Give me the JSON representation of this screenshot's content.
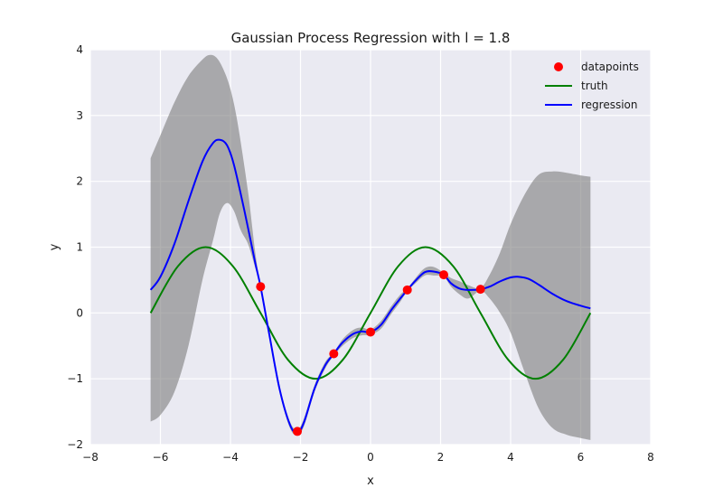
{
  "chart_data": {
    "type": "line",
    "title": "Gaussian Process Regression with l = 1.8",
    "xlabel": "x",
    "ylabel": "y",
    "xlim": [
      -8,
      8
    ],
    "ylim": [
      -2,
      4
    ],
    "xticks": [
      -8,
      -6,
      -4,
      -2,
      0,
      2,
      4,
      6,
      8
    ],
    "yticks": [
      -2,
      -1,
      0,
      1,
      2,
      3,
      4
    ],
    "xtick_labels": [
      "−8",
      "−6",
      "−4",
      "−2",
      "0",
      "2",
      "4",
      "6",
      "8"
    ],
    "ytick_labels": [
      "−2",
      "−1",
      "0",
      "1",
      "2",
      "3",
      "4"
    ],
    "grid": true,
    "legend_position": "top-right",
    "colors": {
      "plot_background": "#EAEAF2",
      "grid": "#FFFFFF",
      "truth": "#008000",
      "regression": "#0000FF",
      "datapoints": "#FF0000",
      "band": "#7F7F7F"
    },
    "legend": [
      {
        "name": "datapoints",
        "kind": "marker",
        "color": "#FF0000"
      },
      {
        "name": "truth",
        "kind": "line",
        "color": "#008000"
      },
      {
        "name": "regression",
        "kind": "line",
        "color": "#0000FF"
      }
    ],
    "datapoints": {
      "x": [
        -3.14,
        -2.09,
        -1.05,
        0.0,
        1.05,
        2.09,
        3.14
      ],
      "y": [
        0.4,
        -1.8,
        -0.62,
        -0.29,
        0.35,
        0.58,
        0.36
      ]
    },
    "truth": {
      "x": [
        -6.28,
        -5.5,
        -4.71,
        -3.93,
        -3.14,
        -2.36,
        -1.57,
        -0.79,
        0.0,
        0.79,
        1.57,
        2.36,
        3.14,
        3.93,
        4.71,
        5.5,
        6.28
      ],
      "y": [
        0.0,
        0.71,
        1.0,
        0.71,
        0.0,
        -0.71,
        -1.0,
        -0.71,
        0.0,
        0.71,
        1.0,
        0.71,
        0.0,
        -0.71,
        -1.0,
        -0.71,
        0.0
      ]
    },
    "regression": {
      "x": [
        -6.28,
        -6.0,
        -5.6,
        -5.2,
        -4.8,
        -4.5,
        -4.3,
        -4.1,
        -3.9,
        -3.6,
        -3.3,
        -3.14,
        -2.9,
        -2.6,
        -2.3,
        -2.09,
        -1.9,
        -1.6,
        -1.3,
        -1.05,
        -0.8,
        -0.5,
        -0.25,
        0.0,
        0.3,
        0.6,
        0.85,
        1.05,
        1.3,
        1.55,
        1.8,
        2.09,
        2.3,
        2.55,
        2.8,
        3.14,
        3.4,
        3.7,
        4.0,
        4.2,
        4.5,
        4.8,
        5.2,
        5.6,
        6.0,
        6.28
      ],
      "y": [
        0.35,
        0.55,
        1.05,
        1.7,
        2.3,
        2.58,
        2.63,
        2.55,
        2.25,
        1.55,
        0.78,
        0.4,
        -0.3,
        -1.15,
        -1.7,
        -1.82,
        -1.66,
        -1.15,
        -0.8,
        -0.62,
        -0.45,
        -0.32,
        -0.28,
        -0.29,
        -0.18,
        0.05,
        0.22,
        0.35,
        0.5,
        0.62,
        0.63,
        0.58,
        0.45,
        0.37,
        0.35,
        0.36,
        0.4,
        0.48,
        0.54,
        0.55,
        0.52,
        0.43,
        0.29,
        0.18,
        0.11,
        0.07
      ]
    },
    "band_upper": {
      "x": [
        -6.28,
        -6.0,
        -5.6,
        -5.2,
        -4.8,
        -4.6,
        -4.4,
        -4.2,
        -4.0,
        -3.8,
        -3.5,
        -3.3,
        -3.14,
        -2.9,
        -2.6,
        -2.3,
        -2.09,
        -1.9,
        -1.6,
        -1.3,
        -1.05,
        -0.8,
        -0.5,
        -0.25,
        0.0,
        0.3,
        0.6,
        0.85,
        1.05,
        1.3,
        1.55,
        1.8,
        2.09,
        2.3,
        2.55,
        2.8,
        3.14,
        3.4,
        3.7,
        4.0,
        4.4,
        4.8,
        5.2,
        5.6,
        6.0,
        6.28
      ],
      "y": [
        2.35,
        2.7,
        3.2,
        3.6,
        3.85,
        3.92,
        3.88,
        3.7,
        3.4,
        2.9,
        1.85,
        0.95,
        0.42,
        -0.25,
        -1.1,
        -1.65,
        -1.77,
        -1.6,
        -1.1,
        -0.75,
        -0.6,
        -0.4,
        -0.26,
        -0.22,
        -0.25,
        -0.12,
        0.11,
        0.28,
        0.37,
        0.54,
        0.68,
        0.7,
        0.61,
        0.53,
        0.48,
        0.42,
        0.38,
        0.58,
        0.92,
        1.35,
        1.8,
        2.1,
        2.15,
        2.13,
        2.09,
        2.07
      ]
    },
    "band_lower": {
      "x": [
        -6.28,
        -6.0,
        -5.6,
        -5.2,
        -4.8,
        -4.5,
        -4.3,
        -4.1,
        -3.9,
        -3.7,
        -3.5,
        -3.3,
        -3.14,
        -2.9,
        -2.6,
        -2.3,
        -2.09,
        -1.9,
        -1.6,
        -1.3,
        -1.05,
        -0.8,
        -0.5,
        -0.25,
        0.0,
        0.3,
        0.6,
        0.85,
        1.05,
        1.3,
        1.55,
        1.8,
        2.09,
        2.3,
        2.55,
        2.8,
        3.14,
        3.4,
        3.7,
        4.0,
        4.4,
        4.8,
        5.2,
        5.6,
        6.0,
        6.28
      ],
      "y": [
        -1.65,
        -1.55,
        -1.2,
        -0.5,
        0.5,
        1.1,
        1.52,
        1.67,
        1.55,
        1.25,
        1.05,
        0.7,
        0.38,
        -0.35,
        -1.2,
        -1.75,
        -1.85,
        -1.72,
        -1.2,
        -0.85,
        -0.65,
        -0.5,
        -0.38,
        -0.34,
        -0.33,
        -0.24,
        -0.01,
        0.17,
        0.33,
        0.46,
        0.57,
        0.57,
        0.55,
        0.4,
        0.28,
        0.22,
        0.34,
        0.22,
        0.0,
        -0.3,
        -0.9,
        -1.45,
        -1.75,
        -1.85,
        -1.9,
        -1.93
      ]
    }
  }
}
